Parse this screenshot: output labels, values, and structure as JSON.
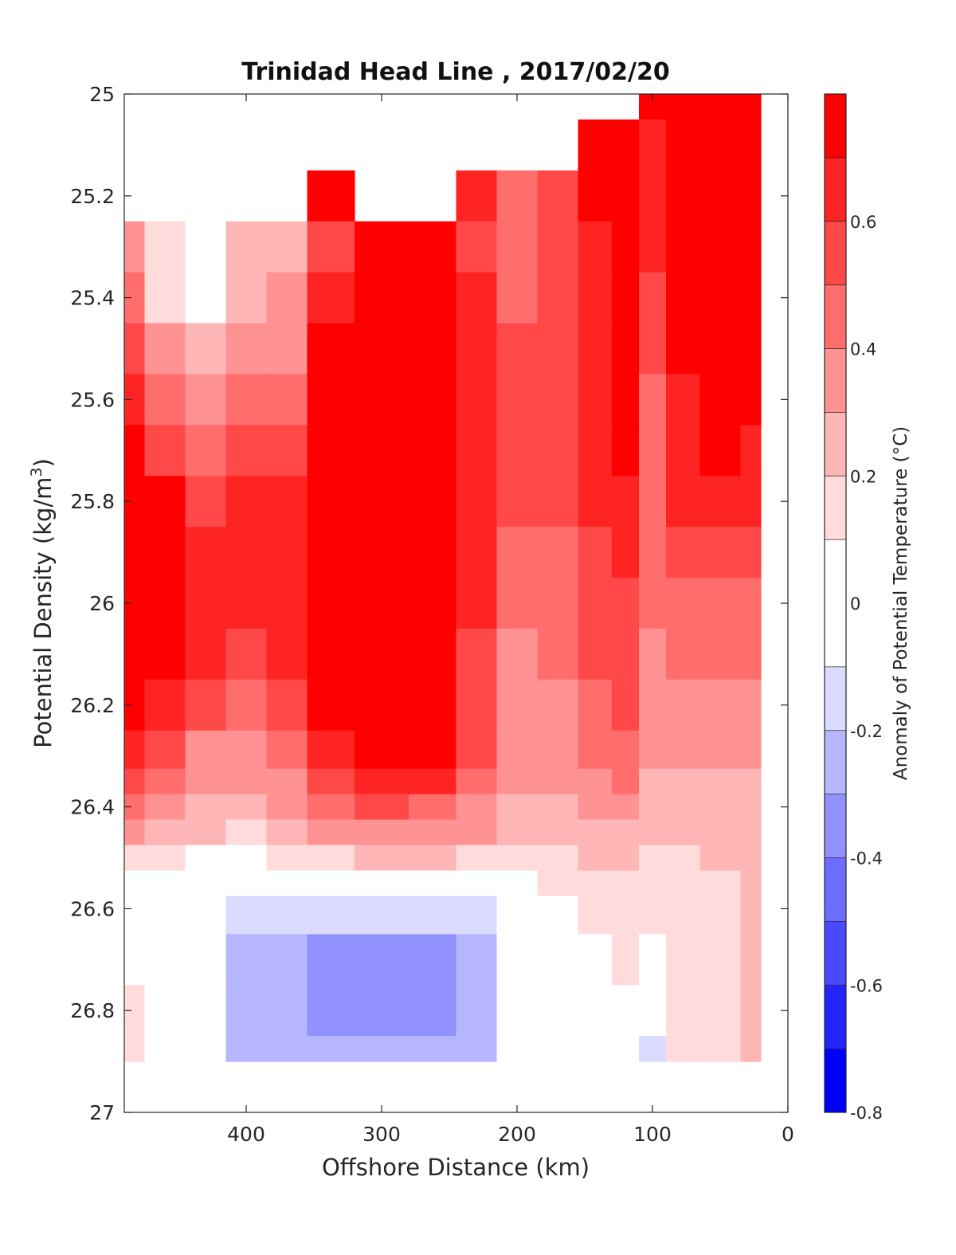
{
  "chart_data": {
    "type": "heatmap",
    "title": "Trinidad Head Line , 2017/02/20",
    "xlabel": "Offshore Distance (km)",
    "ylabel_main": "Potential Density (kg/m",
    "ylabel_sup": "3",
    "ylabel_close": ")",
    "colorbar_label": "Anomaly of Potential Temperature (°C)",
    "xlim": [
      490,
      0
    ],
    "ylim": [
      25,
      27
    ],
    "x_reversed": true,
    "y_reversed": true,
    "x_ticks": [
      400,
      300,
      200,
      100,
      0
    ],
    "x_tick_labels": [
      "400",
      "300",
      "200",
      "100",
      "0"
    ],
    "y_ticks": [
      25,
      25.2,
      25.4,
      25.6,
      25.8,
      26,
      26.2,
      26.4,
      26.6,
      26.8,
      27
    ],
    "y_tick_labels": [
      "25",
      "25.2",
      "25.4",
      "25.6",
      "25.8",
      "26",
      "26.2",
      "26.4",
      "26.6",
      "26.8",
      "27"
    ],
    "colorbar": {
      "range": [
        -0.8,
        0.8
      ],
      "levels": [
        -0.8,
        -0.7,
        -0.6,
        -0.5,
        -0.4,
        -0.3,
        -0.2,
        -0.1,
        0.1,
        0.2,
        0.3,
        0.4,
        0.5,
        0.6,
        0.7,
        0.8
      ],
      "colors": [
        "#0000ff",
        "#2424ff",
        "#4949ff",
        "#6d6dff",
        "#9292ff",
        "#b6b6ff",
        "#dbdbff",
        "#ffffff",
        "#ffdbdb",
        "#ffb6b6",
        "#ff9292",
        "#ff6d6d",
        "#ff4949",
        "#ff2424",
        "#ff0000"
      ],
      "tick_values": [
        -0.8,
        -0.6,
        -0.4,
        -0.2,
        0,
        0.2,
        0.4,
        0.6
      ],
      "tick_labels": [
        "-0.8",
        "-0.6",
        "-0.4",
        "-0.2",
        "0",
        "0.2",
        "0.4",
        "0.6"
      ]
    },
    "x": [
      490,
      460,
      430,
      400,
      370,
      340,
      300,
      260,
      230,
      200,
      170,
      140,
      120,
      100,
      80,
      50,
      20
    ],
    "y": [
      25,
      25.1,
      25.2,
      25.3,
      25.4,
      25.5,
      25.6,
      25.7,
      25.8,
      25.9,
      26,
      26.1,
      26.2,
      26.3,
      26.35,
      26.4,
      26.45,
      26.5,
      26.55,
      26.6,
      26.7,
      26.8,
      26.9
    ],
    "z": [
      [
        null,
        null,
        null,
        null,
        null,
        null,
        null,
        null,
        null,
        null,
        null,
        null,
        null,
        0.8,
        0.8,
        0.8,
        0.8
      ],
      [
        null,
        null,
        null,
        null,
        null,
        null,
        null,
        null,
        null,
        null,
        null,
        0.7,
        0.7,
        0.65,
        0.8,
        0.8,
        0.8
      ],
      [
        null,
        null,
        null,
        null,
        null,
        0.8,
        null,
        null,
        0.6,
        0.4,
        0.5,
        0.7,
        0.7,
        0.65,
        0.8,
        0.8,
        0.8
      ],
      [
        0.3,
        0.1,
        -0.05,
        0.2,
        0.25,
        0.55,
        0.75,
        0.75,
        0.55,
        0.45,
        0.5,
        0.6,
        0.7,
        0.65,
        0.75,
        0.8,
        0.8
      ],
      [
        0.4,
        0.15,
        0.05,
        0.25,
        0.3,
        0.6,
        0.75,
        0.75,
        0.6,
        0.45,
        0.5,
        0.6,
        0.75,
        0.55,
        0.75,
        0.8,
        0.8
      ],
      [
        0.5,
        0.35,
        0.2,
        0.35,
        0.3,
        0.7,
        0.75,
        0.75,
        0.6,
        0.5,
        0.55,
        0.6,
        0.75,
        0.5,
        0.7,
        0.8,
        0.8
      ],
      [
        0.6,
        0.45,
        0.3,
        0.45,
        0.4,
        0.7,
        0.75,
        0.75,
        0.65,
        0.5,
        0.55,
        0.6,
        0.7,
        0.45,
        0.65,
        0.75,
        0.75
      ],
      [
        0.7,
        0.55,
        0.45,
        0.5,
        0.55,
        0.7,
        0.75,
        0.75,
        0.65,
        0.55,
        0.55,
        0.65,
        0.7,
        0.45,
        0.6,
        0.7,
        0.65
      ],
      [
        0.75,
        0.7,
        0.55,
        0.6,
        0.6,
        0.7,
        0.75,
        0.75,
        0.65,
        0.5,
        0.5,
        0.6,
        0.65,
        0.45,
        0.6,
        0.6,
        0.6
      ],
      [
        0.75,
        0.75,
        0.6,
        0.6,
        0.65,
        0.7,
        0.75,
        0.75,
        0.65,
        0.45,
        0.45,
        0.55,
        0.6,
        0.4,
        0.5,
        0.5,
        0.5
      ],
      [
        0.75,
        0.75,
        0.6,
        0.6,
        0.65,
        0.7,
        0.75,
        0.75,
        0.6,
        0.4,
        0.4,
        0.5,
        0.55,
        0.4,
        0.45,
        0.45,
        0.45
      ],
      [
        0.75,
        0.7,
        0.6,
        0.55,
        0.6,
        0.7,
        0.75,
        0.75,
        0.55,
        0.35,
        0.4,
        0.5,
        0.5,
        0.35,
        0.4,
        0.4,
        0.4
      ],
      [
        0.75,
        0.65,
        0.5,
        0.45,
        0.55,
        0.7,
        0.75,
        0.75,
        0.55,
        0.35,
        0.35,
        0.45,
        0.5,
        0.35,
        0.35,
        0.35,
        0.35
      ],
      [
        0.65,
        0.5,
        0.35,
        0.35,
        0.45,
        0.65,
        0.75,
        0.7,
        0.5,
        0.3,
        0.3,
        0.4,
        0.45,
        0.3,
        0.3,
        0.3,
        0.3
      ],
      [
        0.5,
        0.4,
        0.3,
        0.3,
        0.35,
        0.5,
        0.65,
        0.6,
        0.45,
        0.3,
        0.3,
        0.35,
        0.4,
        0.25,
        0.25,
        0.25,
        0.25
      ],
      [
        0.4,
        0.35,
        0.25,
        0.25,
        0.3,
        0.4,
        0.5,
        0.45,
        0.35,
        0.25,
        0.25,
        0.3,
        0.3,
        0.2,
        0.2,
        0.2,
        0.2
      ],
      [
        0.3,
        0.25,
        0.2,
        0.15,
        0.2,
        0.3,
        0.35,
        0.35,
        0.3,
        0.2,
        0.2,
        0.25,
        0.25,
        0.2,
        0.2,
        0.2,
        0.2
      ],
      [
        0.15,
        0.1,
        0.05,
        0.0,
        0.1,
        0.15,
        0.2,
        0.2,
        0.15,
        0.15,
        0.15,
        0.2,
        0.2,
        0.15,
        0.15,
        0.2,
        0.2
      ],
      [
        0.05,
        0.0,
        -0.05,
        -0.1,
        -0.05,
        0.0,
        0.05,
        0.05,
        0.0,
        0.05,
        0.1,
        0.15,
        0.15,
        0.15,
        0.15,
        0.15,
        0.2
      ],
      [
        0.0,
        0.0,
        -0.1,
        -0.15,
        -0.2,
        -0.2,
        -0.2,
        -0.2,
        -0.2,
        -0.05,
        0.0,
        0.1,
        0.15,
        0.1,
        0.15,
        0.15,
        0.2
      ],
      [
        0.05,
        0.0,
        -0.1,
        -0.25,
        -0.3,
        -0.35,
        -0.35,
        -0.35,
        -0.3,
        -0.05,
        -0.05,
        0.05,
        0.1,
        0.0,
        0.1,
        0.15,
        0.2
      ],
      [
        0.1,
        0.05,
        -0.1,
        -0.25,
        -0.3,
        -0.35,
        -0.35,
        -0.35,
        -0.3,
        -0.05,
        -0.05,
        0.0,
        0.0,
        -0.05,
        0.1,
        0.15,
        0.2
      ],
      [
        0.15,
        0.05,
        -0.1,
        -0.25,
        -0.25,
        -0.3,
        -0.3,
        -0.3,
        -0.25,
        -0.05,
        -0.05,
        0.0,
        0.0,
        -0.15,
        0.1,
        0.15,
        0.2
      ]
    ]
  }
}
